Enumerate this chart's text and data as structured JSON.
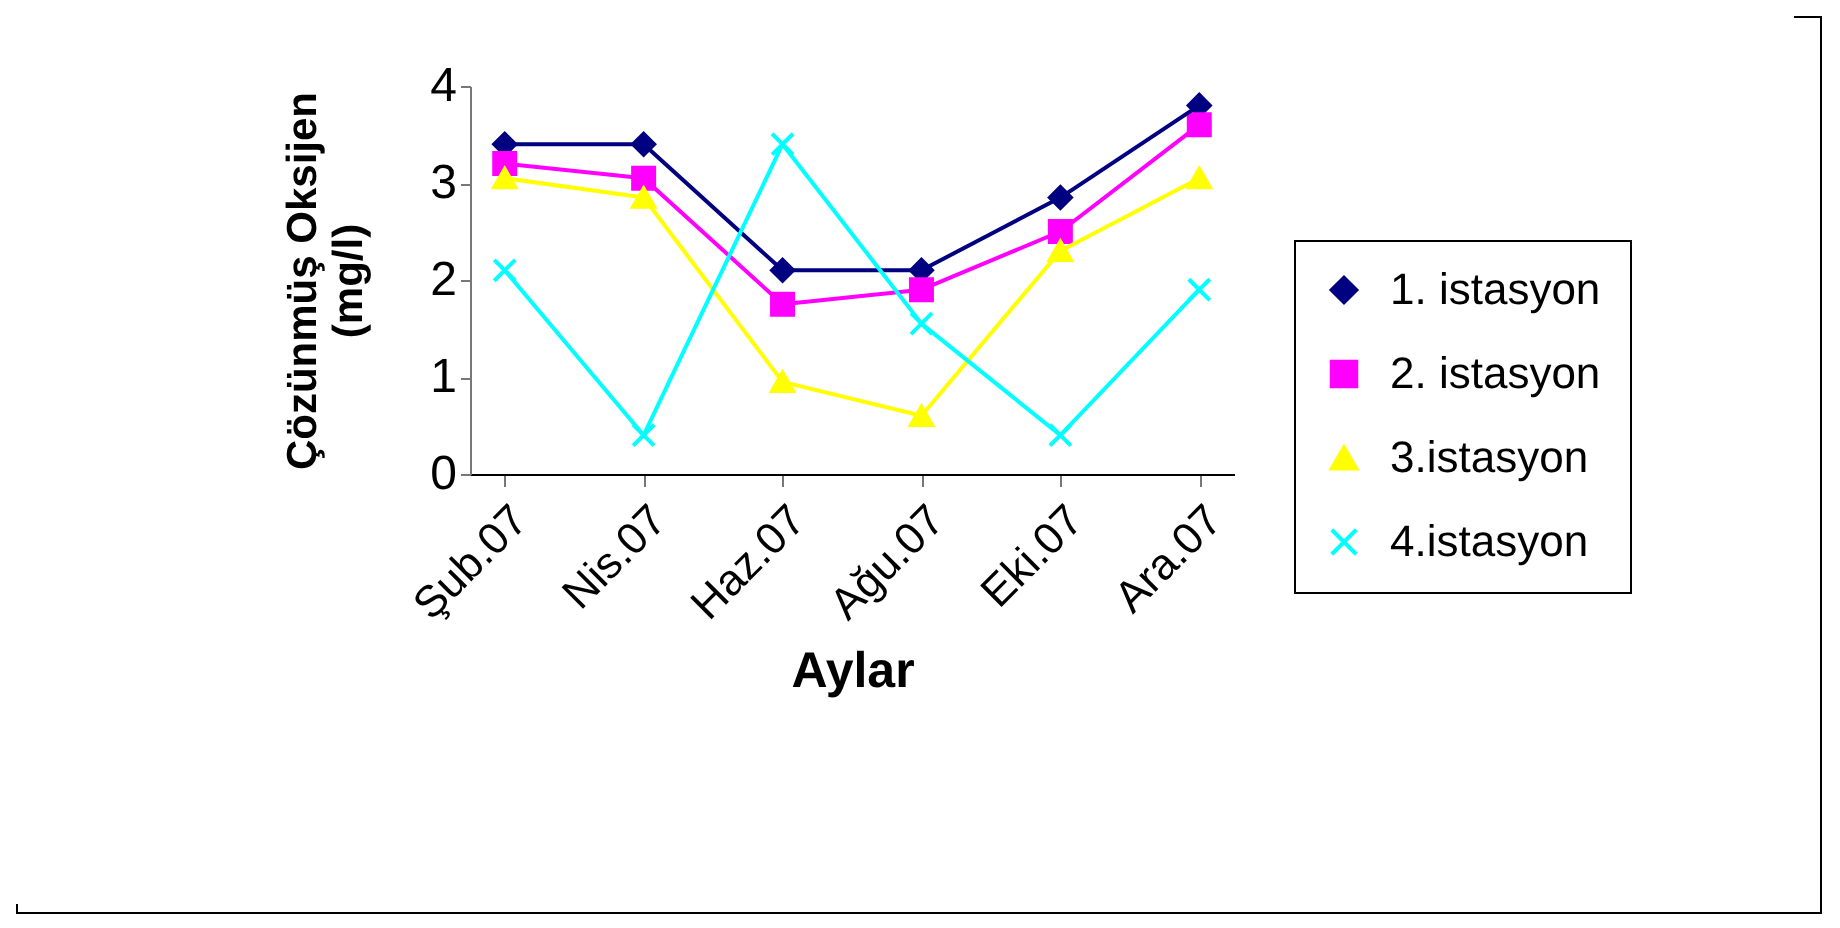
{
  "chart_data": {
    "type": "line",
    "xlabel": "Aylar",
    "ylabel": "Çözünmüş Oksijen\n(mg/l)",
    "categories": [
      "Şub.07",
      "Nis.07",
      "Haz.07",
      "Ağu.07",
      "Eki.07",
      "Ara.07"
    ],
    "series": [
      {
        "name": "1. istasyon",
        "color": "#000080",
        "marker": "diamond",
        "values": [
          3.4,
          3.4,
          2.1,
          2.1,
          2.85,
          3.8
        ]
      },
      {
        "name": "2. istasyon",
        "color": "#ff00ff",
        "marker": "square",
        "values": [
          3.2,
          3.05,
          1.75,
          1.9,
          2.5,
          3.6
        ]
      },
      {
        "name": "3.istasyon",
        "color": "#ffff00",
        "marker": "triangle",
        "values": [
          3.05,
          2.85,
          0.95,
          0.6,
          2.3,
          3.05
        ]
      },
      {
        "name": "4.istasyon",
        "color": "#00ffff",
        "marker": "cross",
        "values": [
          2.1,
          0.4,
          3.4,
          1.55,
          0.4,
          1.9
        ]
      }
    ],
    "ylim": [
      0,
      4
    ],
    "yticks": [
      0,
      1,
      2,
      3,
      4
    ],
    "grid": false,
    "legend": "right"
  }
}
